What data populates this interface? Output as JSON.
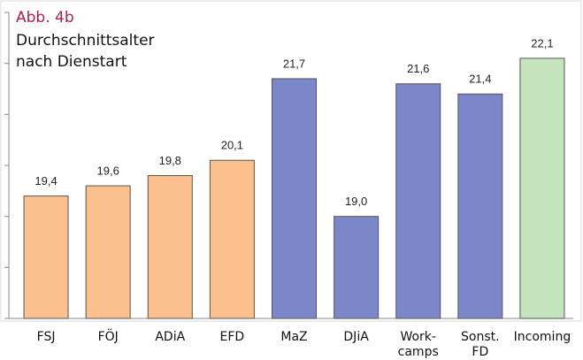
{
  "chart_data": {
    "type": "bar",
    "title": "Abb. 4b",
    "subtitle": [
      "Durchschnittsalter",
      "nach Dienstart"
    ],
    "categories": [
      [
        "FSJ"
      ],
      [
        "FÖJ"
      ],
      [
        "ADiA"
      ],
      [
        "EFD"
      ],
      [
        "MaZ"
      ],
      [
        "DJiA"
      ],
      [
        "Work-",
        "camps"
      ],
      [
        "Sonst.",
        "FD"
      ],
      [
        "Incoming"
      ]
    ],
    "values": [
      19.4,
      19.6,
      19.8,
      20.1,
      21.7,
      19.0,
      21.6,
      21.4,
      22.1
    ],
    "value_labels": [
      "19,4",
      "19,6",
      "19,8",
      "20,1",
      "21,7",
      "19,0",
      "21,6",
      "21,4",
      "22,1"
    ],
    "colors": [
      "#fbc08e",
      "#fbc08e",
      "#fbc08e",
      "#fbc08e",
      "#7c87c9",
      "#7c87c9",
      "#7c87c9",
      "#7c87c9",
      "#c4e4be"
    ],
    "ylim": [
      17,
      23
    ],
    "yticks": [
      17,
      18,
      19,
      20,
      21,
      22,
      23
    ],
    "grid": false
  }
}
